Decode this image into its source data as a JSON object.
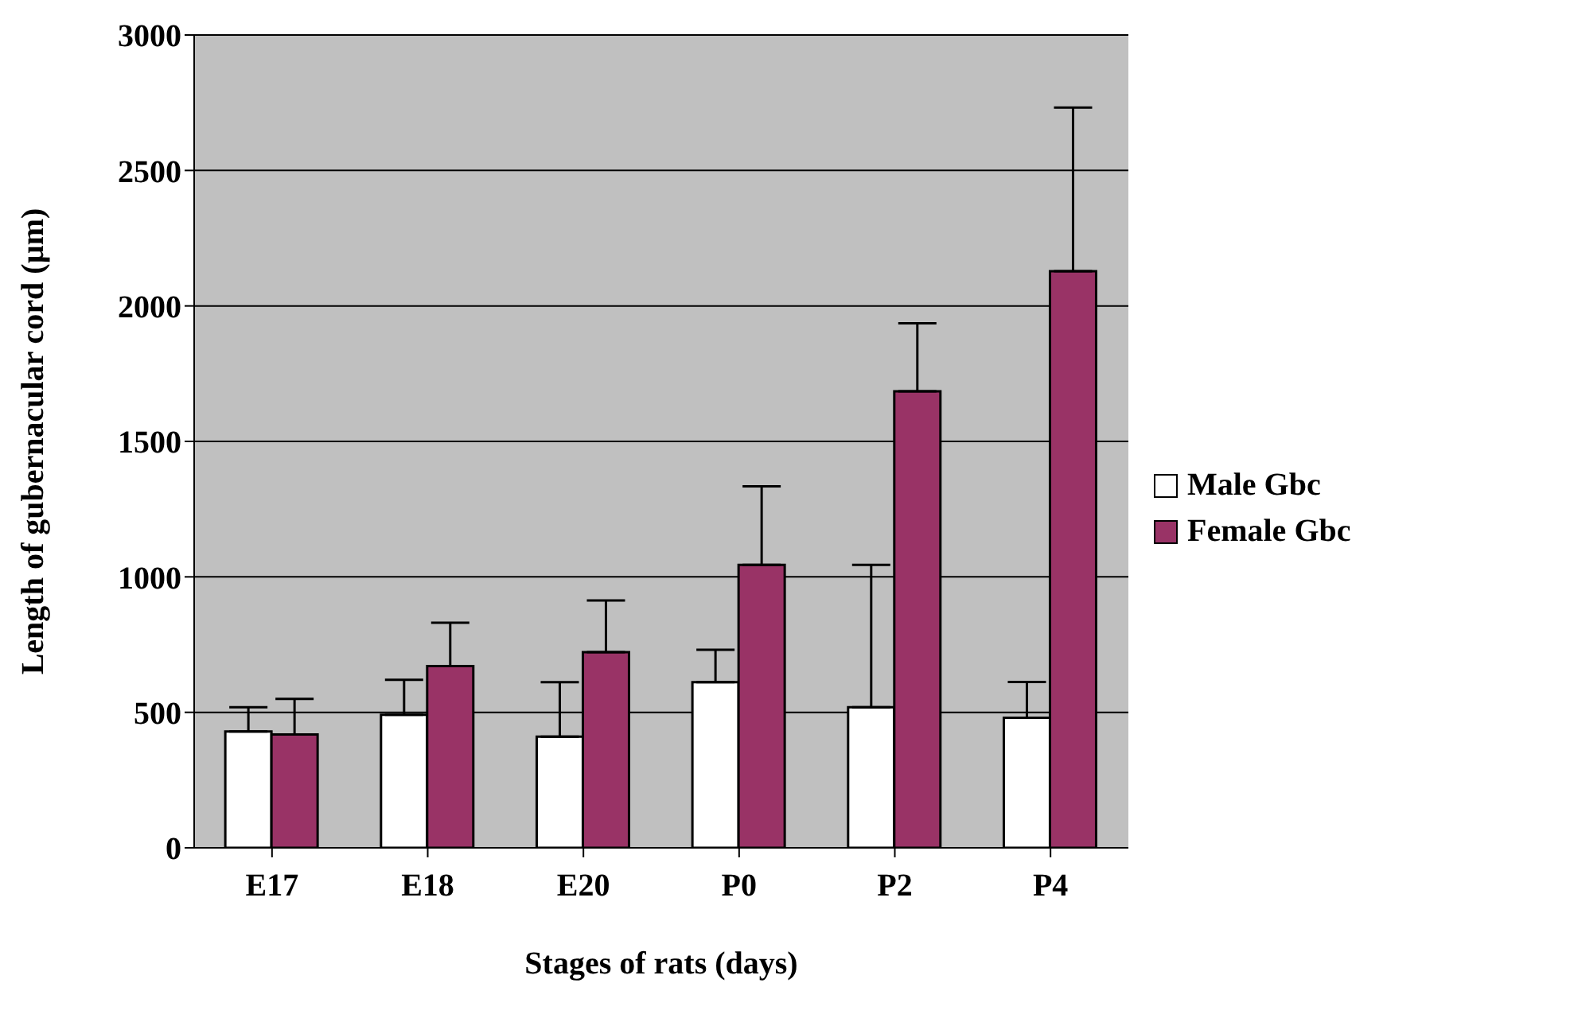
{
  "chart_data": {
    "type": "bar",
    "xlabel": "Stages of rats (days)",
    "ylabel": "Length of gubernacular cord (µm)",
    "categories": [
      "E17",
      "E18",
      "E20",
      "P0",
      "P2",
      "P4"
    ],
    "series": [
      {
        "name": "Male Gbc",
        "color": "#ffffff",
        "values": [
          429,
          491,
          410,
          611,
          519,
          480
        ],
        "errors": [
          [
            429,
            519
          ],
          [
            491,
            620
          ],
          [
            410,
            611
          ],
          [
            611,
            731
          ],
          [
            519,
            1044
          ],
          [
            480,
            612
          ]
        ]
      },
      {
        "name": "Female Gbc",
        "color": "#993366",
        "values": [
          418,
          671,
          722,
          1044,
          1685,
          2128
        ],
        "errors": [
          [
            418,
            550
          ],
          [
            671,
            831
          ],
          [
            722,
            913
          ],
          [
            1044,
            1334
          ],
          [
            1685,
            1936
          ],
          [
            2128,
            2732
          ]
        ]
      }
    ],
    "ylim": [
      0,
      3000
    ],
    "yticks": [
      0,
      500,
      1000,
      1500,
      2000,
      2500,
      3000
    ],
    "grid": "y",
    "legend": "right"
  }
}
